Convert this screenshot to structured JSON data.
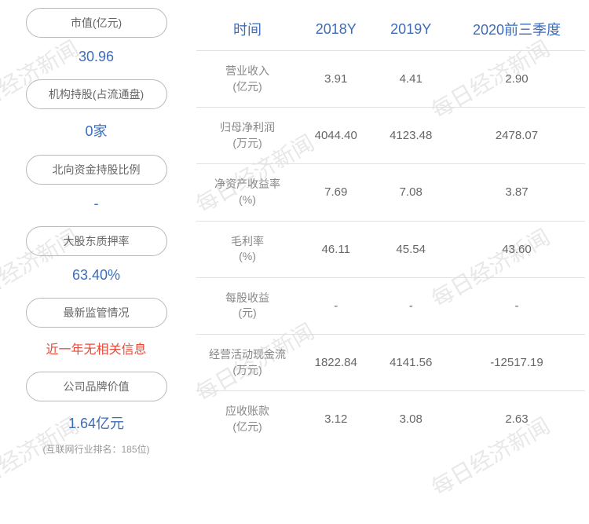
{
  "watermark_text": "每日经济新闻",
  "left_metrics": [
    {
      "label": "市值(亿元)",
      "value": "30.96",
      "color": "blue"
    },
    {
      "label": "机构持股(占流通盘)",
      "value": "0家",
      "color": "blue"
    },
    {
      "label": "北向资金持股比例",
      "value": "-",
      "color": "blue"
    },
    {
      "label": "大股东质押率",
      "value": "63.40%",
      "color": "blue"
    },
    {
      "label": "最新监管情况",
      "value": "近一年无相关信息",
      "color": "red"
    },
    {
      "label": "公司品牌价值",
      "value": "1.64亿元",
      "color": "blue",
      "subtext": "(互联网行业排名：185位)"
    }
  ],
  "table": {
    "columns": [
      "时间",
      "2018Y",
      "2019Y",
      "2020前三季度"
    ],
    "rows": [
      {
        "label": "营业收入\n(亿元)",
        "values": [
          "3.91",
          "4.41",
          "2.90"
        ]
      },
      {
        "label": "归母净利润\n(万元)",
        "values": [
          "4044.40",
          "4123.48",
          "2478.07"
        ]
      },
      {
        "label": "净资产收益率\n(%)",
        "values": [
          "7.69",
          "7.08",
          "3.87"
        ]
      },
      {
        "label": "毛利率\n(%)",
        "values": [
          "46.11",
          "45.54",
          "43.60"
        ]
      },
      {
        "label": "每股收益\n(元)",
        "values": [
          "-",
          "-",
          "-"
        ]
      },
      {
        "label": "经营活动现金流\n(万元)",
        "values": [
          "1822.84",
          "4141.56",
          "-12517.19"
        ]
      },
      {
        "label": "应收账款\n(亿元)",
        "values": [
          "3.12",
          "3.08",
          "2.63"
        ]
      }
    ]
  },
  "colors": {
    "header_blue": "#3d6cb9",
    "value_blue": "#3d6cb9",
    "value_red": "#e74c3c",
    "text_gray": "#666666",
    "label_gray": "#888888",
    "border_gray": "#b8b8b8",
    "divider": "#e0e0e0",
    "watermark": "#e8e8e8"
  }
}
